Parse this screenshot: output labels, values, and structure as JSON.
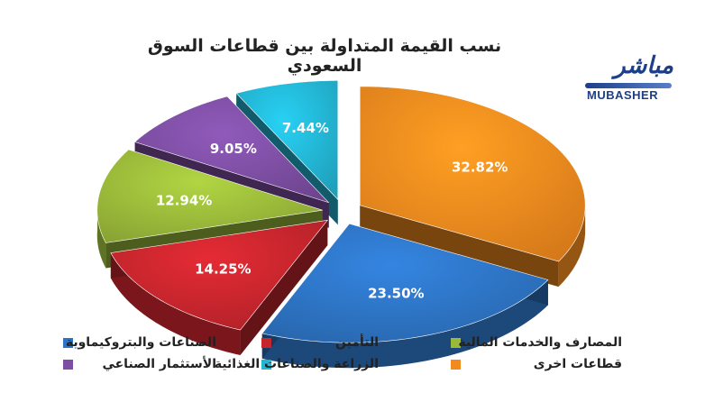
{
  "logo": {
    "arabic_text": "مباشر",
    "latin_text": "MUBASHER",
    "brand_color": "#1d3f8a"
  },
  "chart_data": {
    "type": "pie",
    "title": "نسب القيمة المتداولة بين قطاعات السوق السعودي",
    "style": "3d-exploded",
    "legend_placement": "bottom",
    "slices": [
      {
        "label": "قطاعات اخرى",
        "value": 32.82,
        "display": "32.82%",
        "color": "#f28a1e"
      },
      {
        "label": "الصناعات والبتروكيماوية",
        "value": 23.5,
        "display": "23.50%",
        "color": "#2d74c4"
      },
      {
        "label": "التأمين",
        "value": 14.25,
        "display": "14.25%",
        "color": "#c7252d"
      },
      {
        "label": "المصارف والخدمات المالية",
        "value": 12.94,
        "display": "12.94%",
        "color": "#9ab93a"
      },
      {
        "label": "الأستثمار الصناعي",
        "value": 9.05,
        "display": "9.05%",
        "color": "#7d4ea3"
      },
      {
        "label": "الزراعة والصناعات الغذائية",
        "value": 7.44,
        "display": "7.44%",
        "color": "#23b6d4"
      }
    ]
  }
}
